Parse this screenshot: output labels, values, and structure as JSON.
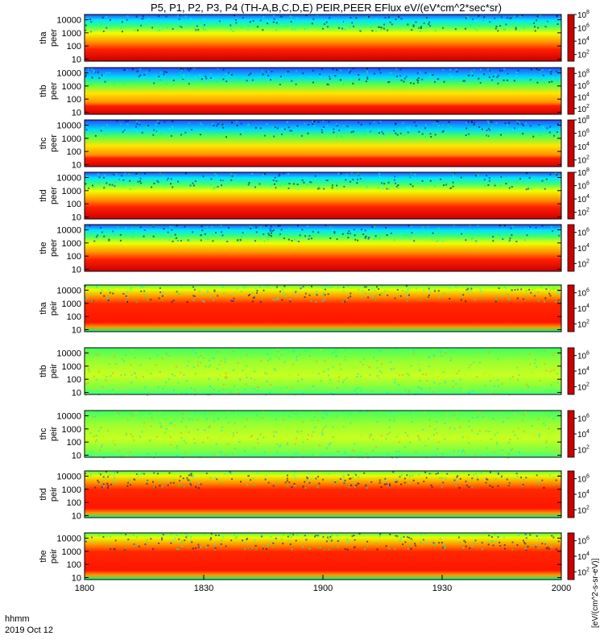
{
  "chart_data": {
    "type": "heatmap",
    "title": "P5, P1, P2, P3, P4 (TH-A,B,C,D,E) PEIR,PEER EFlux eV/(eV*cm^2*sec*sr)",
    "x_axis": {
      "range_hhmm": [
        "1800",
        "2000"
      ],
      "tick_labels": [
        "1800",
        "1830",
        "1900",
        "1930",
        "2000"
      ],
      "label": "hhmm",
      "date": "2019 Oct 12"
    },
    "y_axis": {
      "scale": "log",
      "range_eV": [
        7,
        25000
      ],
      "tick_labels": [
        "10",
        "100",
        "1000",
        "10000"
      ]
    },
    "colorbar": {
      "scale": "log",
      "label": "[eV/(cm^2-s-sr-eV)]",
      "ticks": [
        {
          "exp": "2",
          "value": 100
        },
        {
          "exp": "4",
          "value": 10000
        },
        {
          "exp": "6",
          "value": 1000000
        },
        {
          "exp": "8",
          "value": 100000000
        }
      ],
      "colors": [
        "#7f00ff",
        "#0000ff",
        "#00c8ff",
        "#00ff80",
        "#b4ff00",
        "#ffff00",
        "#ff9600",
        "#ff0000",
        "#c80000"
      ]
    },
    "panels": [
      {
        "probe": "tha",
        "product": "peer",
        "label_top": "tha",
        "label_bottom": "peer",
        "cb_range_exp": [
          1,
          8
        ],
        "cb_ticks": [
          "2",
          "4",
          "6",
          "8"
        ]
      },
      {
        "probe": "thb",
        "product": "peer",
        "label_top": "thb",
        "label_bottom": "peer",
        "cb_range_exp": [
          1,
          9
        ],
        "cb_ticks": [
          "2",
          "4",
          "6",
          "8"
        ]
      },
      {
        "probe": "thc",
        "product": "peer",
        "label_top": "thc",
        "label_bottom": "peer",
        "cb_range_exp": [
          1,
          8
        ],
        "cb_ticks": [
          "2",
          "4",
          "6",
          "8"
        ]
      },
      {
        "probe": "thd",
        "product": "peer",
        "label_top": "thd",
        "label_bottom": "peer",
        "cb_range_exp": [
          1,
          8
        ],
        "cb_ticks": [
          "2",
          "4",
          "6",
          "8"
        ]
      },
      {
        "probe": "the",
        "product": "peer",
        "label_top": "the",
        "label_bottom": "peer",
        "cb_range_exp": [
          1,
          7
        ],
        "cb_ticks": [
          "2",
          "4",
          "6"
        ]
      },
      {
        "probe": "tha",
        "product": "peir",
        "label_top": "tha",
        "label_bottom": "peir",
        "cb_range_exp": [
          1,
          7
        ],
        "cb_ticks": [
          "2",
          "4",
          "6"
        ]
      },
      {
        "probe": "thb",
        "product": "peir",
        "label_top": "thb",
        "label_bottom": "peir",
        "cb_range_exp": [
          1,
          7
        ],
        "cb_ticks": [
          "2",
          "4",
          "6"
        ]
      },
      {
        "probe": "thc",
        "product": "peir",
        "label_top": "thc",
        "label_bottom": "peir",
        "cb_range_exp": [
          1,
          7
        ],
        "cb_ticks": [
          "2",
          "4",
          "6"
        ]
      },
      {
        "probe": "thd",
        "product": "peir",
        "label_top": "thd",
        "label_bottom": "peir",
        "cb_range_exp": [
          1,
          7
        ],
        "cb_ticks": [
          "2",
          "4",
          "6"
        ]
      },
      {
        "probe": "the",
        "product": "peir",
        "label_top": "the",
        "label_bottom": "peir",
        "cb_range_exp": [
          1,
          7
        ],
        "cb_ticks": [
          "2",
          "4",
          "6"
        ]
      }
    ]
  }
}
